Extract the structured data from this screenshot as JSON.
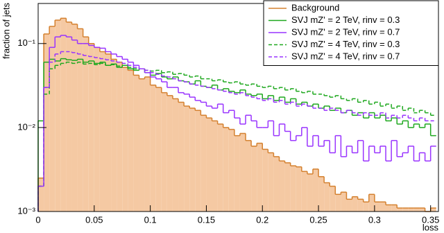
{
  "chart_data": {
    "type": "histogram",
    "ylabel": "fraction of jets",
    "xlabel": "loss",
    "log_y": true,
    "legend": "upper right",
    "xlim": [
      0,
      0.357
    ],
    "ylim": [
      0.001,
      0.3
    ],
    "xticks": [
      0,
      0.05,
      0.1,
      0.15,
      0.2,
      0.25,
      0.3,
      0.35
    ],
    "yticks": [
      {
        "value": 0.001,
        "label": "10⁻³"
      },
      {
        "value": 0.01,
        "label": "10⁻²"
      },
      {
        "value": 0.1,
        "label": "10⁻¹"
      }
    ],
    "bins": [
      0,
      0.005,
      0.01,
      0.015,
      0.02,
      0.025,
      0.03,
      0.035,
      0.04,
      0.045,
      0.05,
      0.055,
      0.06,
      0.065,
      0.07,
      0.075,
      0.08,
      0.085,
      0.09,
      0.095,
      0.1,
      0.105,
      0.11,
      0.115,
      0.12,
      0.125,
      0.13,
      0.135,
      0.14,
      0.145,
      0.15,
      0.155,
      0.16,
      0.165,
      0.17,
      0.175,
      0.18,
      0.185,
      0.19,
      0.195,
      0.2,
      0.205,
      0.21,
      0.215,
      0.22,
      0.225,
      0.23,
      0.235,
      0.24,
      0.245,
      0.25,
      0.255,
      0.26,
      0.265,
      0.27,
      0.275,
      0.28,
      0.285,
      0.29,
      0.295,
      0.3,
      0.305,
      0.31,
      0.315,
      0.32,
      0.325,
      0.33,
      0.335,
      0.34,
      0.345,
      0.35,
      0.355
    ],
    "series": [
      {
        "name": "Background",
        "color": "#d4802e",
        "fill": "#f5c9a3",
        "linestyle": "solid",
        "values": [
          0.0025,
          0.13,
          0.16,
          0.19,
          0.2,
          0.18,
          0.17,
          0.15,
          0.12,
          0.1,
          0.09,
          0.08,
          0.075,
          0.065,
          0.06,
          0.052,
          0.048,
          0.042,
          0.038,
          0.04,
          0.032,
          0.03,
          0.026,
          0.024,
          0.022,
          0.02,
          0.018,
          0.017,
          0.016,
          0.014,
          0.013,
          0.012,
          0.011,
          0.01,
          0.0095,
          0.008,
          0.0085,
          0.007,
          0.006,
          0.0065,
          0.0055,
          0.005,
          0.0045,
          0.004,
          0.0038,
          0.0035,
          0.0034,
          0.003,
          0.0028,
          0.0032,
          0.0026,
          0.0022,
          0.002,
          0.0016,
          0.0017,
          0.0014,
          0.0015,
          0.0014,
          0.0013,
          0.0016,
          0.0013,
          0.0013,
          0.0012,
          0.0012,
          0.0011,
          0.0011,
          0.0011,
          0.0011,
          0.0011,
          0.001,
          0.0011
        ]
      },
      {
        "name": "SVJ mZ' = 2 TeV, rinv = 0.3",
        "color": "#1ea81e",
        "linestyle": "solid",
        "values": [
          0.012,
          0.06,
          0.065,
          0.062,
          0.066,
          0.064,
          0.063,
          0.065,
          0.06,
          0.062,
          0.058,
          0.06,
          0.055,
          0.057,
          0.052,
          0.055,
          0.05,
          0.048,
          0.05,
          0.045,
          0.042,
          0.044,
          0.04,
          0.038,
          0.04,
          0.036,
          0.035,
          0.033,
          0.036,
          0.031,
          0.03,
          0.032,
          0.028,
          0.029,
          0.027,
          0.026,
          0.028,
          0.025,
          0.024,
          0.025,
          0.022,
          0.024,
          0.021,
          0.023,
          0.02,
          0.022,
          0.019,
          0.02,
          0.018,
          0.019,
          0.017,
          0.018,
          0.016,
          0.017,
          0.015,
          0.016,
          0.014,
          0.015,
          0.013,
          0.015,
          0.013,
          0.014,
          0.012,
          0.013,
          0.011,
          0.012,
          0.01,
          0.011,
          0.01,
          0.011,
          0.008
        ]
      },
      {
        "name": "SVJ mZ' = 2 TeV, rinv = 0.7",
        "color": "#9933ff",
        "linestyle": "solid",
        "values": [
          0.002,
          0.03,
          0.09,
          0.12,
          0.125,
          0.12,
          0.11,
          0.1,
          0.1,
          0.095,
          0.09,
          0.088,
          0.08,
          0.075,
          0.07,
          0.065,
          0.06,
          0.055,
          0.05,
          0.045,
          0.04,
          0.038,
          0.035,
          0.03,
          0.03,
          0.026,
          0.025,
          0.023,
          0.021,
          0.02,
          0.018,
          0.017,
          0.019,
          0.015,
          0.016,
          0.013,
          0.011,
          0.014,
          0.012,
          0.01,
          0.01,
          0.012,
          0.008,
          0.011,
          0.009,
          0.007,
          0.008,
          0.01,
          0.006,
          0.008,
          0.006,
          0.007,
          0.005,
          0.008,
          0.0045,
          0.006,
          0.005,
          0.007,
          0.004,
          0.006,
          0.005,
          0.006,
          0.004,
          0.007,
          0.0045,
          0.005,
          0.006,
          0.004,
          0.005,
          0.004,
          0.006
        ]
      },
      {
        "name": "SVJ mZ' = 4 TeV, rinv = 0.3",
        "color": "#1ea81e",
        "linestyle": "dashed",
        "values": [
          0.002,
          0.025,
          0.05,
          0.055,
          0.058,
          0.06,
          0.058,
          0.06,
          0.057,
          0.058,
          0.056,
          0.058,
          0.055,
          0.056,
          0.054,
          0.055,
          0.052,
          0.05,
          0.05,
          0.048,
          0.047,
          0.048,
          0.045,
          0.046,
          0.043,
          0.044,
          0.042,
          0.04,
          0.041,
          0.038,
          0.038,
          0.036,
          0.037,
          0.035,
          0.034,
          0.035,
          0.033,
          0.032,
          0.033,
          0.031,
          0.03,
          0.031,
          0.029,
          0.03,
          0.028,
          0.029,
          0.027,
          0.026,
          0.027,
          0.025,
          0.025,
          0.024,
          0.023,
          0.024,
          0.022,
          0.021,
          0.022,
          0.02,
          0.021,
          0.019,
          0.02,
          0.018,
          0.019,
          0.017,
          0.018,
          0.016,
          0.017,
          0.015,
          0.016,
          0.015,
          0.014
        ]
      },
      {
        "name": "SVJ mZ' = 4 TeV, rinv = 0.7",
        "color": "#9933ff",
        "linestyle": "dashed",
        "values": [
          0.002,
          0.03,
          0.06,
          0.075,
          0.08,
          0.08,
          0.078,
          0.075,
          0.072,
          0.07,
          0.068,
          0.066,
          0.064,
          0.062,
          0.06,
          0.058,
          0.055,
          0.052,
          0.05,
          0.048,
          0.045,
          0.043,
          0.041,
          0.04,
          0.038,
          0.036,
          0.035,
          0.033,
          0.032,
          0.031,
          0.03,
          0.029,
          0.028,
          0.027,
          0.026,
          0.025,
          0.026,
          0.024,
          0.023,
          0.022,
          0.021,
          0.022,
          0.02,
          0.021,
          0.019,
          0.02,
          0.018,
          0.019,
          0.018,
          0.017,
          0.017,
          0.016,
          0.017,
          0.016,
          0.015,
          0.016,
          0.015,
          0.014,
          0.015,
          0.014,
          0.014,
          0.015,
          0.013,
          0.014,
          0.013,
          0.014,
          0.013,
          0.012,
          0.013,
          0.012,
          0.012
        ]
      }
    ]
  }
}
